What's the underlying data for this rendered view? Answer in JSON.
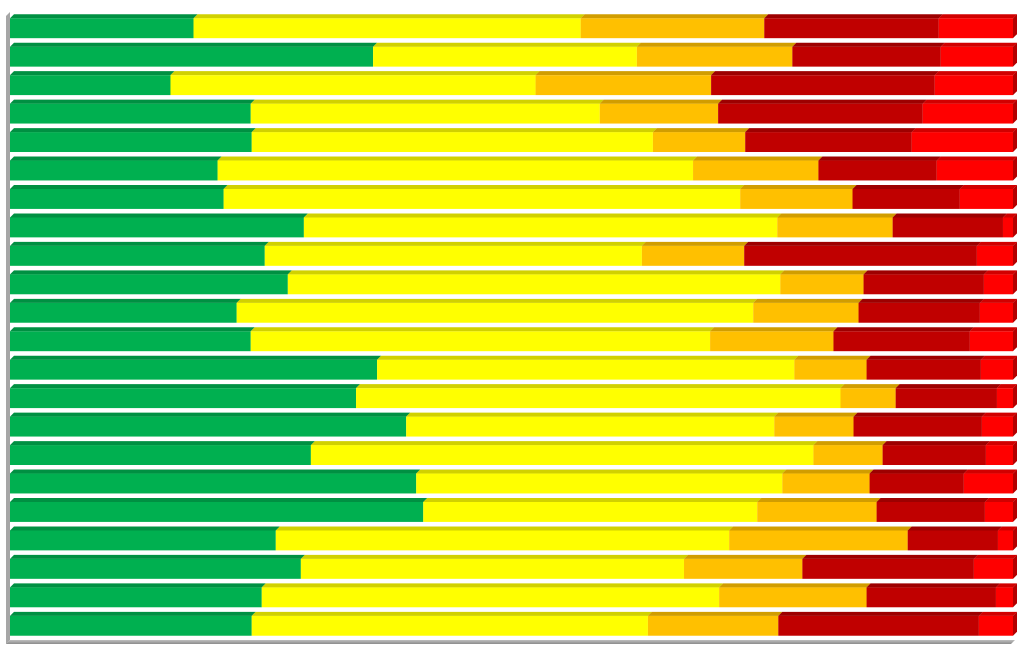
{
  "chart_data": {
    "type": "bar",
    "orientation": "horizontal",
    "stacked": "percent",
    "xlim": [
      0,
      100
    ],
    "grid": false,
    "legend": "none",
    "categories": [
      "",
      "",
      "",
      "",
      "",
      "",
      "",
      "",
      "",
      "",
      "",
      "",
      "",
      "",
      "",
      "",
      "",
      "",
      "",
      "",
      "",
      ""
    ],
    "series": [
      {
        "color": "#00b050",
        "values": [
          18.3,
          36.2,
          16.0,
          24.0,
          24.1,
          20.7,
          21.3,
          29.3,
          25.4,
          27.7,
          22.6,
          24.0,
          36.6,
          34.5,
          39.5,
          30.0,
          40.5,
          41.2,
          26.5,
          29.0,
          25.1,
          24.1
        ]
      },
      {
        "color": "#ffff00",
        "values": [
          38.6,
          26.3,
          36.4,
          34.8,
          40.0,
          47.4,
          51.5,
          47.2,
          37.6,
          49.1,
          51.5,
          45.8,
          41.6,
          48.3,
          36.7,
          50.1,
          36.5,
          33.3,
          45.2,
          38.2,
          45.6,
          39.5
        ]
      },
      {
        "color": "#ffc000",
        "values": [
          18.3,
          15.5,
          17.5,
          11.8,
          9.2,
          12.5,
          11.2,
          11.5,
          10.2,
          8.3,
          10.5,
          12.3,
          7.2,
          5.5,
          7.9,
          6.9,
          8.7,
          11.9,
          17.8,
          11.8,
          14.7,
          13.0
        ]
      },
      {
        "color": "#c00000",
        "values": [
          17.4,
          14.8,
          22.3,
          20.4,
          16.6,
          11.8,
          10.7,
          11.0,
          23.2,
          12.0,
          12.1,
          13.6,
          11.4,
          10.1,
          12.8,
          10.3,
          9.4,
          10.8,
          9.0,
          17.1,
          12.9,
          20.0
        ]
      },
      {
        "color": "#ff0000",
        "values": [
          7.4,
          7.2,
          7.8,
          9.0,
          10.1,
          7.6,
          5.3,
          1.0,
          3.6,
          2.9,
          3.3,
          4.3,
          3.2,
          1.6,
          3.1,
          2.7,
          4.9,
          2.8,
          1.5,
          3.9,
          1.7,
          3.4
        ]
      }
    ]
  }
}
